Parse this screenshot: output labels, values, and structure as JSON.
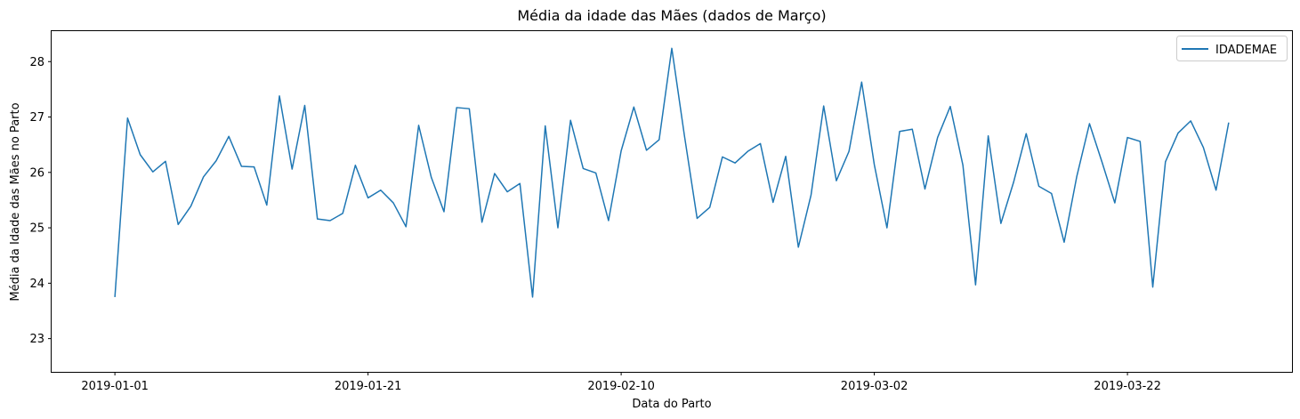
{
  "chart_data": {
    "type": "line",
    "title": "Média da idade das Mães (dados de Março)",
    "xlabel": "Data do Parto",
    "ylabel": "Média da Idade das Mães no Parto",
    "x_start": "2019-01-01",
    "x_end": "2019-03-30",
    "xlim": [
      "2018-12-27",
      "2019-04-04"
    ],
    "ylim": [
      22.4,
      28.55
    ],
    "x_ticks": [
      "2019-01-01",
      "2019-01-21",
      "2019-02-10",
      "2019-03-02",
      "2019-03-22"
    ],
    "y_ticks": [
      23,
      24,
      25,
      26,
      27,
      28
    ],
    "grid": false,
    "legend_position": "top-right",
    "series": [
      {
        "name": "IDADEMAE",
        "color": "#1f77b4",
        "x": [
          "2019-01-01",
          "2019-01-02",
          "2019-01-03",
          "2019-01-04",
          "2019-01-05",
          "2019-01-06",
          "2019-01-07",
          "2019-01-08",
          "2019-01-09",
          "2019-01-10",
          "2019-01-11",
          "2019-01-12",
          "2019-01-13",
          "2019-01-14",
          "2019-01-15",
          "2019-01-16",
          "2019-01-17",
          "2019-01-18",
          "2019-01-19",
          "2019-01-20",
          "2019-01-21",
          "2019-01-22",
          "2019-01-23",
          "2019-01-24",
          "2019-01-25",
          "2019-01-26",
          "2019-01-27",
          "2019-01-28",
          "2019-01-29",
          "2019-01-30",
          "2019-01-31",
          "2019-02-01",
          "2019-02-02",
          "2019-02-03",
          "2019-02-04",
          "2019-02-05",
          "2019-02-06",
          "2019-02-07",
          "2019-02-08",
          "2019-02-09",
          "2019-02-10",
          "2019-02-11",
          "2019-02-12",
          "2019-02-13",
          "2019-02-14",
          "2019-02-15",
          "2019-02-16",
          "2019-02-17",
          "2019-02-18",
          "2019-02-19",
          "2019-02-20",
          "2019-02-21",
          "2019-02-22",
          "2019-02-23",
          "2019-02-24",
          "2019-02-25",
          "2019-02-26",
          "2019-02-27",
          "2019-02-28",
          "2019-03-01",
          "2019-03-02",
          "2019-03-03",
          "2019-03-04",
          "2019-03-05",
          "2019-03-06",
          "2019-03-07",
          "2019-03-08",
          "2019-03-09",
          "2019-03-10",
          "2019-03-11",
          "2019-03-12",
          "2019-03-13",
          "2019-03-14",
          "2019-03-15",
          "2019-03-16",
          "2019-03-17",
          "2019-03-18",
          "2019-03-19",
          "2019-03-20",
          "2019-03-21",
          "2019-03-22",
          "2019-03-23",
          "2019-03-24",
          "2019-03-25",
          "2019-03-26",
          "2019-03-27",
          "2019-03-28",
          "2019-03-29",
          "2019-03-30"
        ],
        "values": [
          23.75,
          26.98,
          26.32,
          26.01,
          26.2,
          25.06,
          25.39,
          25.92,
          26.21,
          26.65,
          26.11,
          26.1,
          25.41,
          27.38,
          26.06,
          27.21,
          25.16,
          25.13,
          25.26,
          26.13,
          25.54,
          25.68,
          25.45,
          25.02,
          26.85,
          25.91,
          25.29,
          27.17,
          27.15,
          25.1,
          25.98,
          25.65,
          25.8,
          23.75,
          26.84,
          25.0,
          26.94,
          26.07,
          25.99,
          25.13,
          26.39,
          27.18,
          26.4,
          26.59,
          28.24,
          26.66,
          25.17,
          25.37,
          26.28,
          26.17,
          26.38,
          26.52,
          25.46,
          26.29,
          24.65,
          25.59,
          27.2,
          25.85,
          26.38,
          27.63,
          26.14,
          25.0,
          26.74,
          26.78,
          25.7,
          26.63,
          27.19,
          26.13,
          23.97,
          26.66,
          25.08,
          25.82,
          26.7,
          25.75,
          25.62,
          24.74,
          25.93,
          26.88,
          26.18,
          25.45,
          26.63,
          26.56,
          23.93,
          26.19,
          26.71,
          26.93,
          26.45,
          25.68,
          26.9
        ]
      }
    ]
  }
}
